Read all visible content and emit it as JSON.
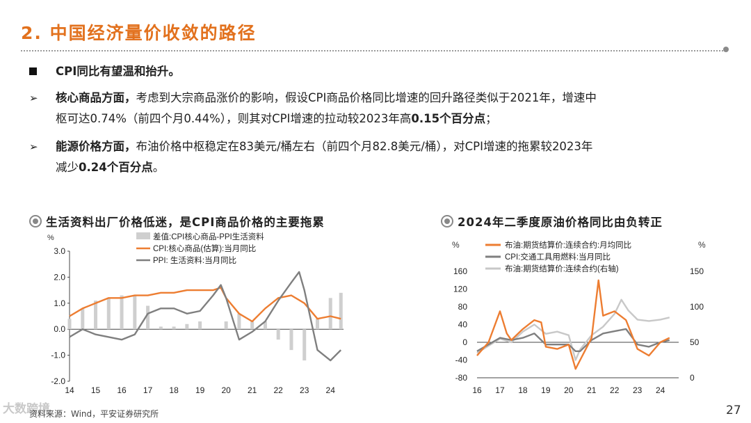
{
  "slide": {
    "title": "2. 中国经济量价收敛的路径",
    "page_number": "27",
    "source": "资料来源：Wind，平安证券研究所",
    "watermark": "大数跨境"
  },
  "bullets": [
    {
      "marker": "square",
      "lines": [
        [
          {
            "t": "CPI同比有望温和抬升。",
            "b": true
          }
        ]
      ]
    },
    {
      "marker": "arrow",
      "lines": [
        [
          {
            "t": "核心商品方面，",
            "b": true
          },
          {
            "t": "考虑到大宗商品涨价的影响，假设CPI商品价格同比增速的回升路径类似于2021年，增速中",
            "b": false
          }
        ],
        [
          {
            "t": "枢可达0.74%（前四个月0.44%），则其对CPI增速的拉动较2023年高",
            "b": false
          },
          {
            "t": "0.15个百分点",
            "b": true
          },
          {
            "t": "；",
            "b": false
          }
        ]
      ]
    },
    {
      "marker": "arrow",
      "lines": [
        [
          {
            "t": "能源价格方面，",
            "b": true
          },
          {
            "t": "布油价格中枢稳定在83美元/桶左右（前四个月82.8美元/桶），对CPI增速的拖累较2023年",
            "b": false
          }
        ],
        [
          {
            "t": "减少",
            "b": false
          },
          {
            "t": "0.24个百分点",
            "b": true
          },
          {
            "t": "。",
            "b": false
          }
        ]
      ]
    }
  ],
  "chart_left_title": "生活资料出厂价格低迷，是CPI商品价格的主要拖累",
  "chart_right_title": "2024年二季度原油价格同比由负转正",
  "colors": {
    "accent": "#e2711d",
    "orange": "#ed7d31",
    "gray": "#7f7f7f",
    "lightgray": "#c8c8c8",
    "bars": "#cfcfcf"
  },
  "chart_data": [
    {
      "type": "bar+line",
      "ylabel": "%",
      "ylim": [
        -2.0,
        3.0
      ],
      "yticks": [
        "3.0",
        "2.0",
        "1.0",
        "0.0",
        "-1.0",
        "-2.0"
      ],
      "yticks_values": [
        3.0,
        2.0,
        1.0,
        0.0,
        -1.0,
        -2.0
      ],
      "xticks": [
        "14",
        "15",
        "16",
        "17",
        "18",
        "19",
        "20",
        "21",
        "22",
        "23",
        "24"
      ],
      "xrange": [
        2014.0,
        2024.5
      ],
      "series": [
        {
          "name": "差值:CPI核心商品-PPI生活资料",
          "kind": "bar",
          "x": [
            2014.0,
            2014.5,
            2015.0,
            2015.5,
            2016.0,
            2016.5,
            2017.0,
            2017.5,
            2018.0,
            2018.5,
            2019.0,
            2019.5,
            2020.0,
            2020.5,
            2021.0,
            2021.5,
            2022.0,
            2022.5,
            2023.0,
            2023.5,
            2024.0,
            2024.4
          ],
          "values": [
            0.4,
            0.8,
            1.1,
            1.2,
            1.3,
            1.3,
            0.9,
            0.1,
            0.1,
            0.2,
            0.3,
            0.0,
            0.3,
            0.6,
            0.3,
            0.3,
            -0.4,
            -0.8,
            -1.2,
            0.4,
            1.2,
            1.4
          ]
        },
        {
          "name": "CPI:核心商品(估算):当月同比",
          "kind": "line",
          "x": [
            2014.0,
            2014.5,
            2015.0,
            2015.5,
            2016.0,
            2016.5,
            2017.0,
            2017.5,
            2018.0,
            2018.5,
            2019.0,
            2019.5,
            2019.8,
            2020.0,
            2020.5,
            2021.0,
            2021.5,
            2022.0,
            2022.5,
            2023.0,
            2023.5,
            2024.0,
            2024.4
          ],
          "values": [
            0.5,
            0.8,
            1.0,
            1.2,
            1.2,
            1.3,
            1.3,
            1.4,
            1.4,
            1.5,
            1.5,
            1.5,
            1.6,
            1.2,
            0.6,
            0.3,
            0.8,
            1.2,
            1.3,
            1.0,
            0.4,
            0.5,
            0.4
          ]
        },
        {
          "name": "PPI: 生活资料:当月同比",
          "kind": "line",
          "x": [
            2014.0,
            2014.5,
            2015.0,
            2015.5,
            2016.0,
            2016.5,
            2017.0,
            2017.5,
            2018.0,
            2018.5,
            2019.0,
            2019.5,
            2019.8,
            2020.0,
            2020.5,
            2021.0,
            2021.5,
            2022.0,
            2022.5,
            2022.8,
            2023.0,
            2023.5,
            2024.0,
            2024.4
          ],
          "values": [
            -0.3,
            0.0,
            -0.2,
            -0.3,
            -0.4,
            -0.2,
            0.6,
            0.8,
            0.8,
            0.6,
            0.7,
            1.3,
            1.7,
            1.2,
            -0.4,
            -0.1,
            0.3,
            1.1,
            1.8,
            2.2,
            1.5,
            -0.8,
            -1.2,
            -0.8
          ]
        }
      ]
    },
    {
      "type": "line",
      "ylabel_left": "%",
      "ylabel_right": "%",
      "ylim_left": [
        -80,
        160
      ],
      "ylim_right": [
        0,
        150
      ],
      "yticks_left": [
        "160",
        "120",
        "80",
        "40",
        "0",
        "-40",
        "-80"
      ],
      "yticks_left_values": [
        160,
        120,
        80,
        40,
        0,
        -40,
        -80
      ],
      "yticks_right": [
        "150",
        "100",
        "50",
        "0"
      ],
      "yticks_right_values": [
        150,
        100,
        50,
        0
      ],
      "xticks": [
        "16",
        "17",
        "18",
        "19",
        "20",
        "21",
        "22",
        "23",
        "24"
      ],
      "xrange": [
        2016.0,
        2024.8
      ],
      "series": [
        {
          "name": "布油:期货结算价:连续合约:月均同比",
          "axis": "left",
          "x": [
            2016.0,
            2016.5,
            2017.0,
            2017.3,
            2017.5,
            2018.0,
            2018.5,
            2018.8,
            2019.0,
            2019.5,
            2020.0,
            2020.3,
            2020.5,
            2021.0,
            2021.3,
            2021.5,
            2022.0,
            2022.5,
            2023.0,
            2023.5,
            2024.0,
            2024.4
          ],
          "values": [
            -30,
            0,
            70,
            20,
            5,
            30,
            50,
            45,
            -10,
            -15,
            -5,
            -60,
            -40,
            10,
            140,
            60,
            70,
            50,
            -15,
            -30,
            0,
            10
          ]
        },
        {
          "name": "CPI:交通工具用燃料:当月同比",
          "axis": "left",
          "x": [
            2016.0,
            2016.5,
            2017.0,
            2017.5,
            2018.0,
            2018.5,
            2019.0,
            2019.5,
            2020.0,
            2020.3,
            2020.5,
            2021.0,
            2021.5,
            2022.0,
            2022.5,
            2023.0,
            2023.5,
            2024.0,
            2024.4
          ],
          "values": [
            -20,
            -5,
            10,
            5,
            10,
            20,
            -5,
            -5,
            -5,
            -20,
            -20,
            5,
            20,
            25,
            30,
            -5,
            -10,
            0,
            5
          ]
        },
        {
          "name": "布油:期货结算价:连续合约(右轴)",
          "axis": "right",
          "x": [
            2016.0,
            2016.5,
            2017.0,
            2017.5,
            2018.0,
            2018.5,
            2019.0,
            2019.5,
            2020.0,
            2020.3,
            2020.5,
            2021.0,
            2021.5,
            2022.0,
            2022.3,
            2022.6,
            2023.0,
            2023.5,
            2024.0,
            2024.4
          ],
          "values": [
            35,
            45,
            55,
            50,
            65,
            75,
            62,
            65,
            60,
            25,
            40,
            60,
            72,
            90,
            110,
            95,
            82,
            80,
            82,
            85
          ]
        }
      ]
    }
  ]
}
